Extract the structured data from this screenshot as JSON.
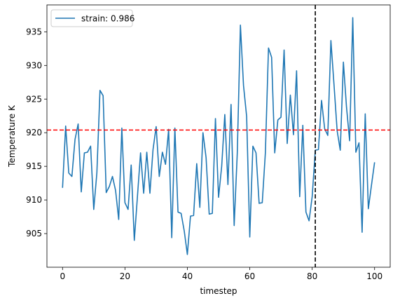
{
  "chart_data": {
    "type": "line",
    "title": "",
    "xlabel": "timestep",
    "ylabel": "Temperature K",
    "xlim": [
      -5,
      105
    ],
    "ylim": [
      900,
      939
    ],
    "xticks": [
      0,
      20,
      40,
      60,
      80,
      100
    ],
    "yticks": [
      905,
      910,
      915,
      920,
      925,
      930,
      935
    ],
    "grid": false,
    "legend_position": "upper-left",
    "series": [
      {
        "name": "strain: 0.986",
        "color": "#1f77b4",
        "x": [
          0,
          1,
          2,
          3,
          4,
          5,
          6,
          7,
          8,
          9,
          10,
          11,
          12,
          13,
          14,
          15,
          16,
          17,
          18,
          19,
          20,
          21,
          22,
          23,
          24,
          25,
          26,
          27,
          28,
          29,
          30,
          31,
          32,
          33,
          34,
          35,
          36,
          37,
          38,
          39,
          40,
          41,
          42,
          43,
          44,
          45,
          46,
          47,
          48,
          49,
          50,
          51,
          52,
          53,
          54,
          55,
          56,
          57,
          58,
          59,
          60,
          61,
          62,
          63,
          64,
          65,
          66,
          67,
          68,
          69,
          70,
          71,
          72,
          73,
          74,
          75,
          76,
          77,
          78,
          79,
          80,
          81,
          82,
          83,
          84,
          85,
          86,
          87,
          88,
          89,
          90,
          91,
          92,
          93,
          94,
          95,
          96,
          97,
          98,
          99,
          100
        ],
        "y": [
          911.8,
          921.0,
          914.0,
          913.5,
          919.0,
          921.3,
          911.2,
          917.0,
          917.1,
          918.0,
          908.6,
          914.0,
          926.3,
          925.5,
          911.1,
          912.0,
          913.5,
          911.4,
          907.1,
          920.7,
          909.6,
          908.6,
          915.2,
          904.0,
          910.5,
          917.0,
          911.0,
          917.1,
          911.0,
          917.5,
          920.9,
          913.5,
          917.1,
          915.3,
          920.5,
          904.4,
          920.7,
          908.2,
          908.0,
          905.4,
          901.9,
          907.6,
          907.7,
          915.4,
          908.9,
          920.0,
          916.3,
          907.9,
          908.0,
          922.1,
          910.4,
          915.0,
          922.7,
          912.3,
          924.2,
          906.2,
          917.0,
          936.0,
          927.0,
          922.4,
          904.5,
          918.0,
          917.0,
          909.5,
          909.6,
          917.0,
          932.6,
          931.2,
          917.0,
          921.9,
          922.3,
          932.3,
          918.4,
          925.6,
          919.7,
          929.2,
          910.5,
          921.1,
          908.2,
          906.9,
          910.5,
          917.4,
          917.5,
          924.8,
          920.6,
          919.6,
          933.7,
          927.1,
          920.3,
          917.4,
          930.5,
          923.8,
          918.8,
          937.1,
          917.1,
          918.5,
          905.2,
          922.8,
          908.7,
          912.2,
          915.6
        ]
      }
    ],
    "annotations": [
      {
        "type": "hline",
        "y": 920.4,
        "color": "#ff0000",
        "style": "dashed"
      },
      {
        "type": "vline",
        "x": 81,
        "color": "#000000",
        "style": "dashed"
      }
    ]
  }
}
